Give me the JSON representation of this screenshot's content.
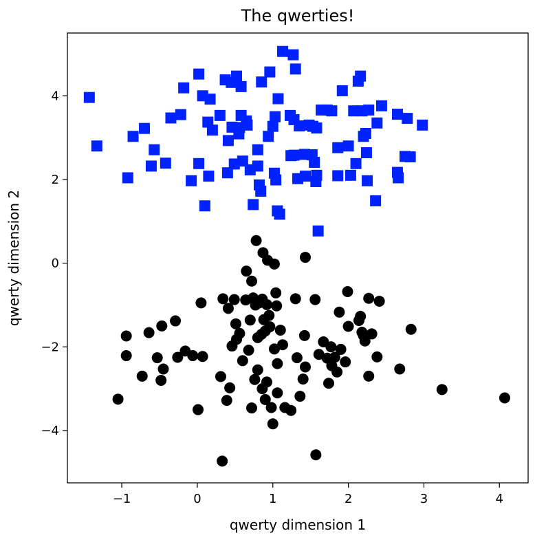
{
  "chart_data": {
    "type": "scatter",
    "title": "The qwerties!",
    "xlabel": "qwerty dimension 1",
    "ylabel": "qwerty dimension 2",
    "xlim": [
      -1.72,
      4.38
    ],
    "ylim": [
      -5.25,
      5.5
    ],
    "xticks": [
      -1,
      0,
      1,
      2,
      3,
      4
    ],
    "yticks": [
      -4,
      -2,
      0,
      2,
      4
    ],
    "xtick_labels": [
      "−1",
      "0",
      "1",
      "2",
      "3",
      "4"
    ],
    "ytick_labels": [
      "−4",
      "−2",
      "0",
      "2",
      "4"
    ],
    "grid": false,
    "series": [
      {
        "marker": "square",
        "color": "#0022ff",
        "points": [
          [
            -1.43,
            3.96
          ],
          [
            -1.33,
            2.8
          ],
          [
            -0.92,
            2.04
          ],
          [
            -0.85,
            3.03
          ],
          [
            -0.7,
            3.22
          ],
          [
            -0.61,
            2.32
          ],
          [
            -0.57,
            2.71
          ],
          [
            -0.42,
            2.39
          ],
          [
            -0.35,
            3.47
          ],
          [
            -0.22,
            3.55
          ],
          [
            -0.18,
            4.19
          ],
          [
            -0.08,
            1.97
          ],
          [
            0.02,
            4.52
          ],
          [
            0.02,
            2.38
          ],
          [
            0.07,
            4.0
          ],
          [
            0.1,
            1.37
          ],
          [
            0.14,
            3.37
          ],
          [
            0.15,
            2.08
          ],
          [
            0.17,
            3.92
          ],
          [
            0.2,
            3.18
          ],
          [
            0.3,
            3.53
          ],
          [
            0.37,
            4.38
          ],
          [
            0.4,
            2.16
          ],
          [
            0.41,
            2.93
          ],
          [
            0.45,
            4.32
          ],
          [
            0.46,
            3.25
          ],
          [
            0.49,
            2.37
          ],
          [
            0.52,
            4.47
          ],
          [
            0.55,
            3.09
          ],
          [
            0.56,
            3.24
          ],
          [
            0.58,
            3.53
          ],
          [
            0.58,
            4.22
          ],
          [
            0.6,
            2.44
          ],
          [
            0.65,
            3.4
          ],
          [
            0.66,
            3.3
          ],
          [
            0.7,
            2.23
          ],
          [
            0.74,
            1.4
          ],
          [
            0.8,
            2.32
          ],
          [
            0.8,
            2.71
          ],
          [
            0.82,
            1.87
          ],
          [
            0.84,
            1.72
          ],
          [
            0.85,
            4.33
          ],
          [
            0.94,
            3.03
          ],
          [
            0.96,
            4.57
          ],
          [
            1.0,
            3.27
          ],
          [
            1.02,
            2.15
          ],
          [
            1.03,
            3.5
          ],
          [
            1.04,
            1.99
          ],
          [
            1.06,
            1.25
          ],
          [
            1.07,
            3.93
          ],
          [
            1.09,
            1.17
          ],
          [
            1.13,
            5.06
          ],
          [
            1.23,
            3.53
          ],
          [
            1.24,
            2.57
          ],
          [
            1.27,
            4.98
          ],
          [
            1.28,
            3.43
          ],
          [
            1.28,
            2.58
          ],
          [
            1.3,
            4.64
          ],
          [
            1.33,
            2.02
          ],
          [
            1.35,
            3.28
          ],
          [
            1.42,
            2.6
          ],
          [
            1.43,
            2.08
          ],
          [
            1.48,
            3.3
          ],
          [
            1.52,
            2.59
          ],
          [
            1.53,
            3.27
          ],
          [
            1.55,
            2.41
          ],
          [
            1.57,
            1.95
          ],
          [
            1.58,
            3.23
          ],
          [
            1.58,
            2.1
          ],
          [
            1.6,
            0.77
          ],
          [
            1.64,
            3.66
          ],
          [
            1.72,
            3.66
          ],
          [
            1.78,
            3.64
          ],
          [
            1.86,
            2.76
          ],
          [
            1.86,
            2.09
          ],
          [
            1.92,
            4.12
          ],
          [
            2.0,
            2.8
          ],
          [
            2.03,
            2.1
          ],
          [
            2.07,
            3.64
          ],
          [
            2.1,
            2.38
          ],
          [
            2.13,
            4.35
          ],
          [
            2.16,
            4.47
          ],
          [
            2.18,
            3.64
          ],
          [
            2.2,
            3.03
          ],
          [
            2.23,
            3.1
          ],
          [
            2.24,
            2.64
          ],
          [
            2.25,
            1.97
          ],
          [
            2.27,
            3.66
          ],
          [
            2.36,
            1.49
          ],
          [
            2.38,
            3.35
          ],
          [
            2.44,
            3.76
          ],
          [
            2.65,
            3.56
          ],
          [
            2.65,
            2.17
          ],
          [
            2.66,
            2.04
          ],
          [
            2.75,
            2.55
          ],
          [
            2.78,
            3.46
          ],
          [
            2.82,
            2.54
          ],
          [
            2.98,
            3.3
          ]
        ]
      },
      {
        "marker": "circle",
        "color": "#000000",
        "points": [
          [
            -1.05,
            -3.25
          ],
          [
            -0.94,
            -1.74
          ],
          [
            -0.94,
            -2.21
          ],
          [
            -0.73,
            -2.7
          ],
          [
            -0.64,
            -1.66
          ],
          [
            -0.53,
            -2.26
          ],
          [
            -0.47,
            -1.5
          ],
          [
            -0.48,
            -2.8
          ],
          [
            -0.45,
            -2.53
          ],
          [
            -0.29,
            -1.38
          ],
          [
            -0.26,
            -2.25
          ],
          [
            -0.16,
            -2.1
          ],
          [
            -0.06,
            -2.21
          ],
          [
            0.01,
            -3.5
          ],
          [
            0.05,
            -0.95
          ],
          [
            0.07,
            -2.23
          ],
          [
            0.31,
            -2.71
          ],
          [
            0.33,
            -4.73
          ],
          [
            0.34,
            -0.85
          ],
          [
            0.39,
            -3.28
          ],
          [
            0.41,
            -1.08
          ],
          [
            0.43,
            -2.98
          ],
          [
            0.46,
            -1.98
          ],
          [
            0.49,
            -0.87
          ],
          [
            0.51,
            -1.45
          ],
          [
            0.52,
            -1.82
          ],
          [
            0.56,
            -1.68
          ],
          [
            0.6,
            -2.33
          ],
          [
            0.64,
            -0.88
          ],
          [
            0.65,
            -0.19
          ],
          [
            0.68,
            -2.08
          ],
          [
            0.7,
            -1.36
          ],
          [
            0.72,
            -0.43
          ],
          [
            0.72,
            -3.46
          ],
          [
            0.74,
            -0.83
          ],
          [
            0.76,
            -2.78
          ],
          [
            0.77,
            -1.0
          ],
          [
            0.78,
            0.54
          ],
          [
            0.8,
            -1.78
          ],
          [
            0.8,
            -2.55
          ],
          [
            0.82,
            -0.95
          ],
          [
            0.85,
            -1.7
          ],
          [
            0.86,
            -0.86
          ],
          [
            0.86,
            -3.0
          ],
          [
            0.87,
            0.25
          ],
          [
            0.88,
            -1.35
          ],
          [
            0.9,
            -1.62
          ],
          [
            0.9,
            -3.26
          ],
          [
            0.92,
            -2.84
          ],
          [
            0.92,
            -0.99
          ],
          [
            0.93,
            0.07
          ],
          [
            0.95,
            -1.25
          ],
          [
            0.96,
            -1.52
          ],
          [
            0.98,
            -3.45
          ],
          [
            1.0,
            -3.84
          ],
          [
            1.02,
            -0.02
          ],
          [
            1.02,
            -2.05
          ],
          [
            1.04,
            -0.71
          ],
          [
            1.05,
            -1.02
          ],
          [
            1.06,
            -2.4
          ],
          [
            1.06,
            -3.1
          ],
          [
            1.1,
            -1.6
          ],
          [
            1.13,
            -1.95
          ],
          [
            1.16,
            -3.45
          ],
          [
            1.24,
            -3.52
          ],
          [
            1.3,
            -0.85
          ],
          [
            1.32,
            -2.26
          ],
          [
            1.36,
            -3.18
          ],
          [
            1.4,
            -2.77
          ],
          [
            1.42,
            -1.73
          ],
          [
            1.43,
            0.14
          ],
          [
            1.43,
            -2.48
          ],
          [
            1.56,
            -0.87
          ],
          [
            1.57,
            -4.58
          ],
          [
            1.61,
            -2.18
          ],
          [
            1.67,
            -1.88
          ],
          [
            1.72,
            -2.27
          ],
          [
            1.74,
            -2.87
          ],
          [
            1.77,
            -2.0
          ],
          [
            1.78,
            -2.45
          ],
          [
            1.82,
            -2.25
          ],
          [
            1.85,
            -2.6
          ],
          [
            1.88,
            -1.17
          ],
          [
            1.9,
            -2.06
          ],
          [
            1.96,
            -2.36
          ],
          [
            1.99,
            -0.68
          ],
          [
            2.0,
            -1.51
          ],
          [
            2.14,
            -1.37
          ],
          [
            2.16,
            -1.27
          ],
          [
            2.18,
            -1.65
          ],
          [
            2.2,
            -1.73
          ],
          [
            2.22,
            -1.86
          ],
          [
            2.27,
            -2.7
          ],
          [
            2.27,
            -0.84
          ],
          [
            2.31,
            -1.69
          ],
          [
            2.38,
            -2.24
          ],
          [
            2.41,
            -0.91
          ],
          [
            2.68,
            -2.53
          ],
          [
            2.83,
            -1.58
          ],
          [
            3.24,
            -3.02
          ],
          [
            4.07,
            -3.22
          ]
        ]
      }
    ]
  }
}
